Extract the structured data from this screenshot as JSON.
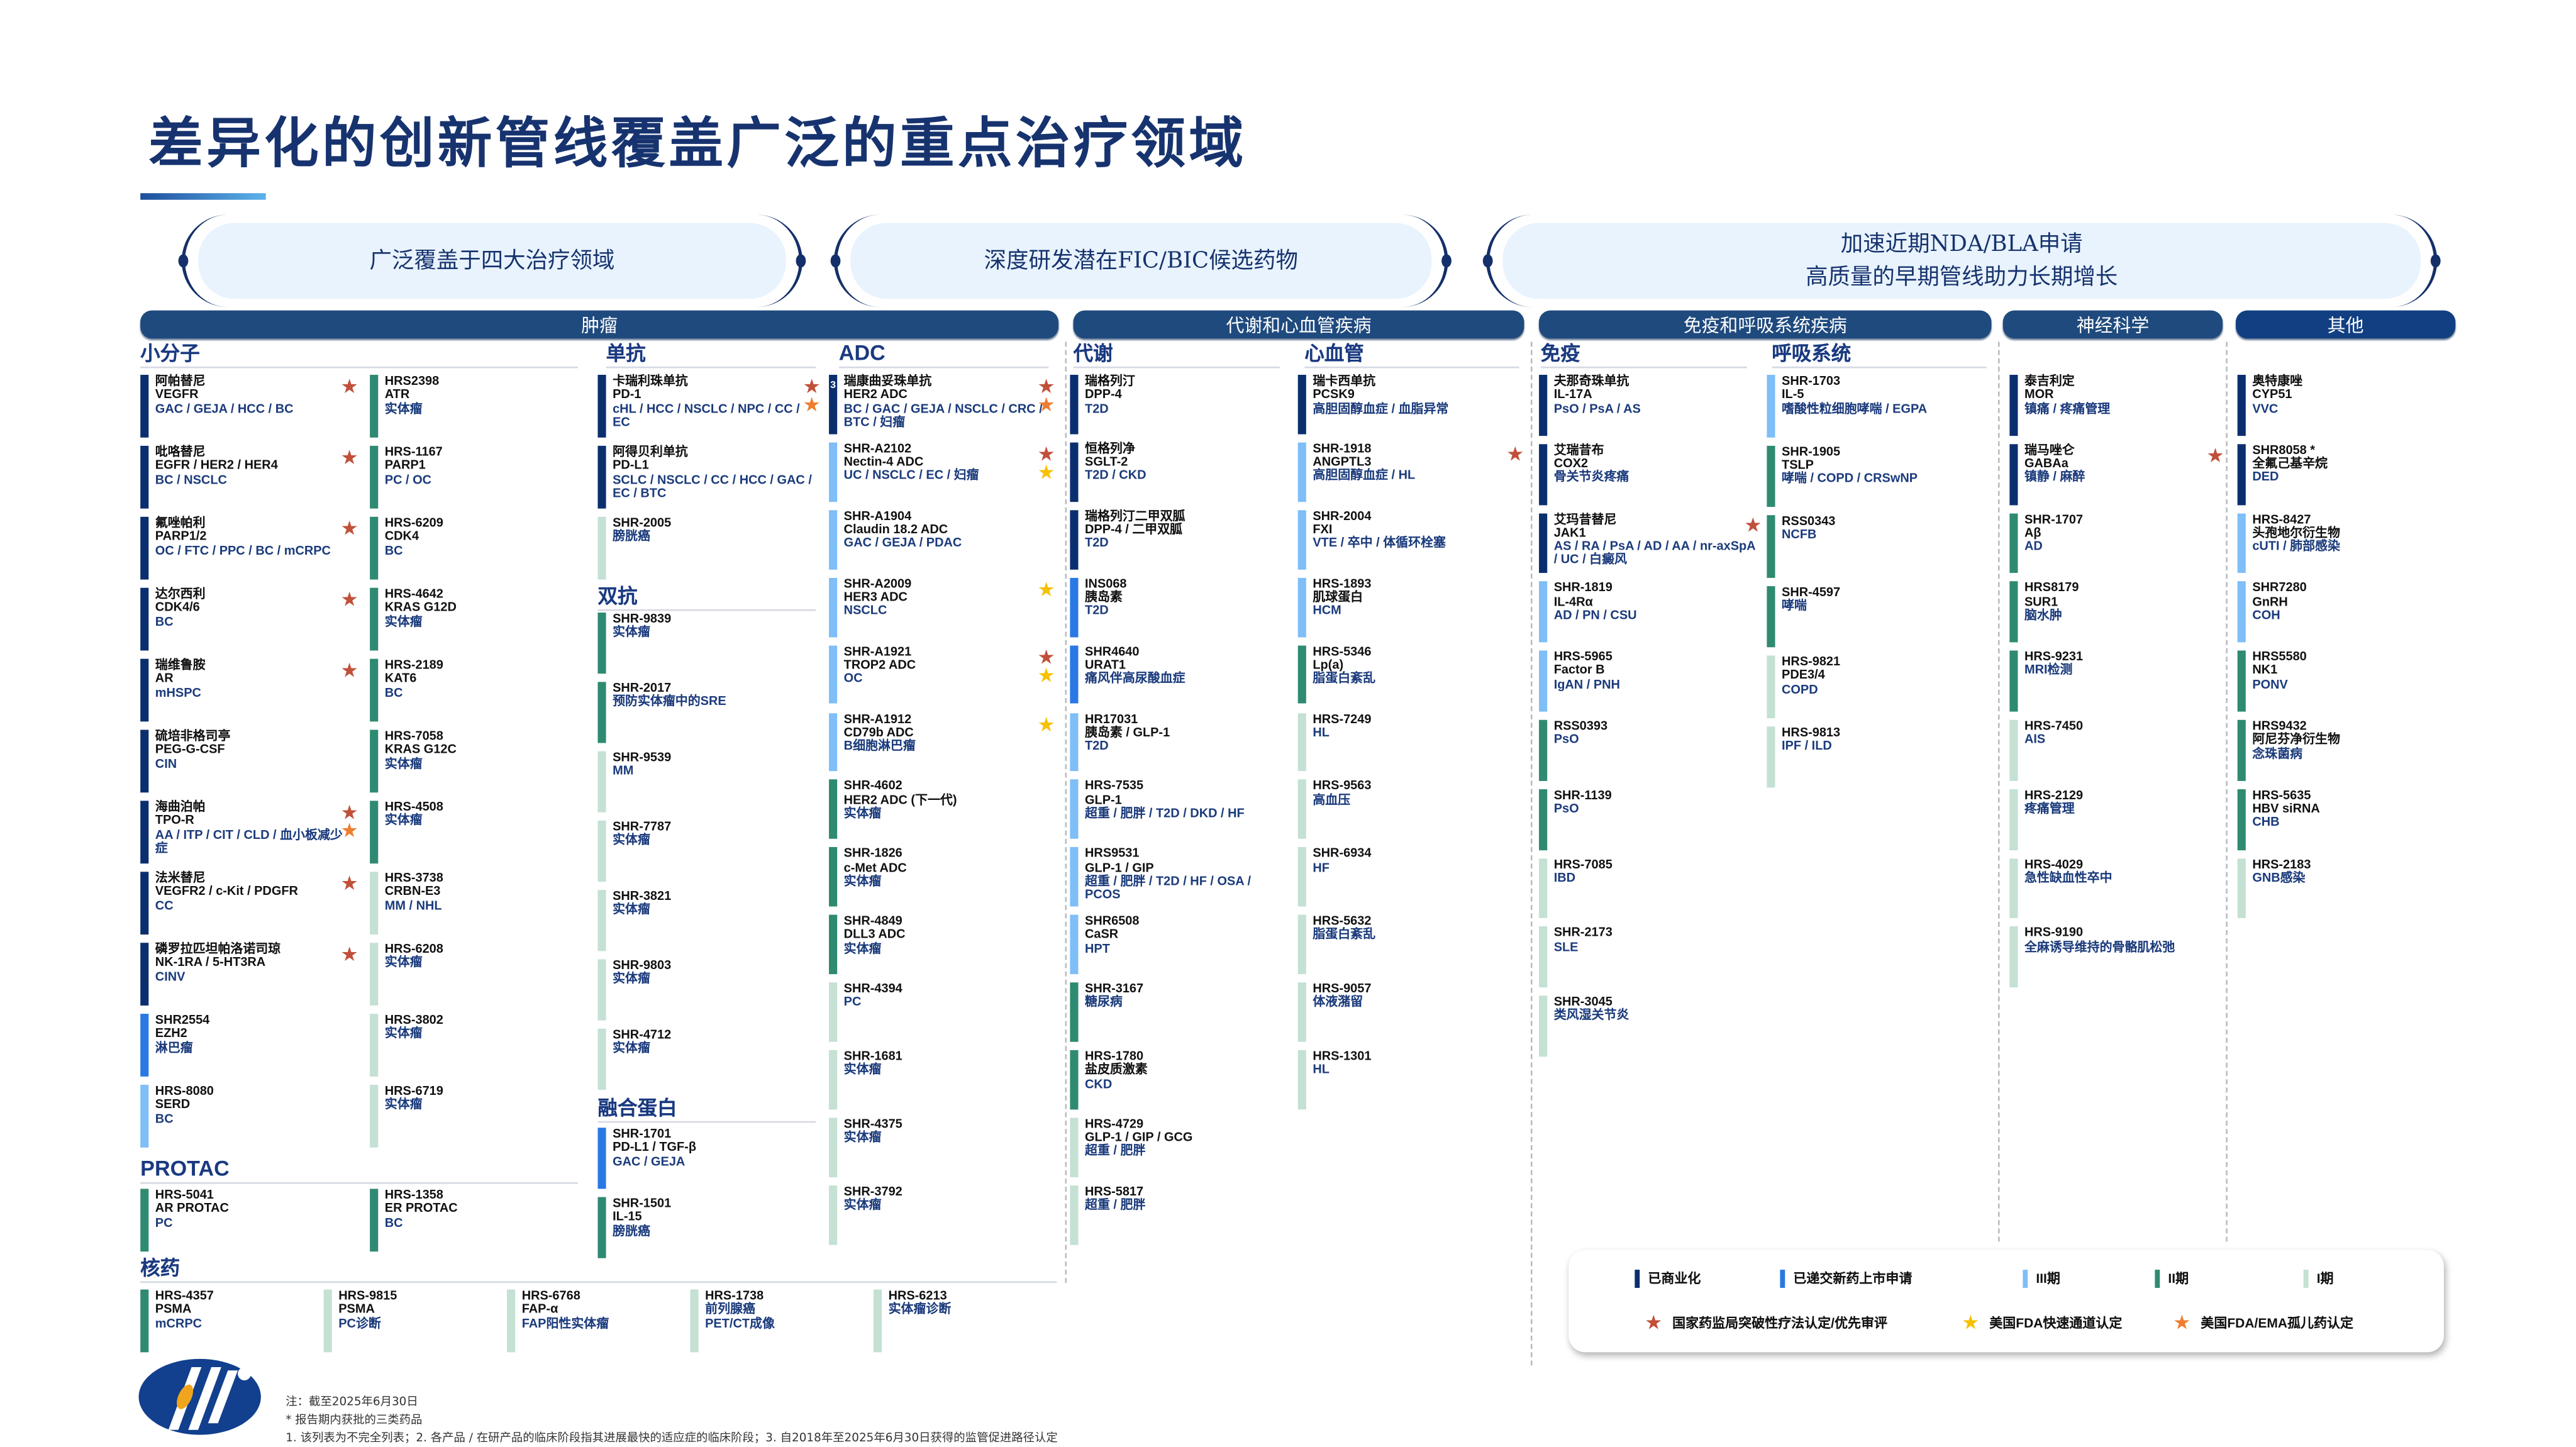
{
  "title": "差异化的创新管线覆盖广泛的重点治疗领域",
  "pills": [
    {
      "lines": [
        "广泛覆盖于四大治疗领域"
      ]
    },
    {
      "lines": [
        "深度研发潜在FIC/BIC候选药物"
      ]
    },
    {
      "lines": [
        "加速近期NDA/BLA申请",
        "高质量的早期管线助力长期增长"
      ]
    }
  ],
  "categories": [
    "肿瘤",
    "代谢和心血管疾病",
    "免疫和呼吸系统疾病",
    "神经科学",
    "其他"
  ],
  "headings": {
    "small_molecule": "小分子",
    "protac": "PROTAC",
    "radio": "核药",
    "mab": "单抗",
    "bsab": "双抗",
    "fusion": "融合蛋白",
    "adc": "ADC",
    "metabolic": "代谢",
    "cardio": "心血管",
    "immune": "免疫",
    "respiratory": "呼吸系统"
  },
  "stage_colors": {
    "c": "#0b2f6e",
    "n": "#2a78e4",
    "p3": "#7fbef7",
    "p2": "#2f8a72",
    "p1": "#c4e1d3"
  },
  "star_colors": {
    "red": "#c0503a",
    "yellow": "#f7c100",
    "orange": "#ee7d30"
  },
  "columns": {
    "small_left": {
      "cards": [
        {
          "name": "阿帕替尼",
          "target": "VEGFR",
          "ind": "GAC / GEJA / HCC / BC",
          "stage": "c",
          "stars": [
            "red"
          ]
        },
        {
          "name": "吡咯替尼",
          "target": "EGFR / HER2 / HER4",
          "ind": "BC / NSCLC",
          "stage": "c",
          "stars": [
            "red"
          ]
        },
        {
          "name": "氟唑帕利",
          "target": "PARP1/2",
          "ind": "OC / FTC / PPC / BC / mCRPC",
          "stage": "c",
          "stars": [
            "red"
          ]
        },
        {
          "name": "达尔西利",
          "target": "CDK4/6",
          "ind": "BC",
          "stage": "c",
          "stars": [
            "red"
          ]
        },
        {
          "name": "瑞维鲁胺",
          "target": "AR",
          "ind": "mHSPC",
          "stage": "c",
          "stars": [
            "red"
          ]
        },
        {
          "name": "硫培非格司亭",
          "target": "PEG-G-CSF",
          "ind": "CIN",
          "stage": "c",
          "stars": []
        },
        {
          "name": "海曲泊帕",
          "target": "TPO-R",
          "ind": "AA / ITP / CIT / CLD / 血小板减少症",
          "stage": "c",
          "stars": [
            "red",
            "orange"
          ]
        },
        {
          "name": "法米替尼",
          "target": "VEGFR2 / c-Kit / PDGFR",
          "ind": "CC",
          "stage": "c",
          "stars": [
            "red"
          ]
        },
        {
          "name": "磷罗拉匹坦帕洛诺司琼",
          "target": "NK-1RA / 5-HT3RA",
          "ind": "CINV",
          "stage": "c",
          "stars": [
            "red"
          ]
        },
        {
          "name": "SHR2554",
          "target": "EZH2",
          "ind": "淋巴瘤",
          "stage": "n",
          "stars": []
        },
        {
          "name": "HRS-8080",
          "target": "SERD",
          "ind": "BC",
          "stage": "p3",
          "stars": []
        }
      ]
    },
    "small_right": {
      "cards": [
        {
          "name": "HRS2398",
          "target": "ATR",
          "ind": "实体瘤",
          "stage": "p2",
          "stars": []
        },
        {
          "name": "HRS-1167",
          "target": "PARP1",
          "ind": "PC / OC",
          "stage": "p2",
          "stars": []
        },
        {
          "name": "HRS-6209",
          "target": "CDK4",
          "ind": "BC",
          "stage": "p2",
          "stars": []
        },
        {
          "name": "HRS-4642",
          "target": "KRAS G12D",
          "ind": "实体瘤",
          "stage": "p2",
          "stars": []
        },
        {
          "name": "HRS-2189",
          "target": "KAT6",
          "ind": "BC",
          "stage": "p2",
          "stars": []
        },
        {
          "name": "HRS-7058",
          "target": "KRAS G12C",
          "ind": "实体瘤",
          "stage": "p2",
          "stars": []
        },
        {
          "name": "HRS-4508",
          "ind": "实体瘤",
          "stage": "p2",
          "stars": []
        },
        {
          "name": "HRS-3738",
          "target": "CRBN-E3",
          "ind": "MM / NHL",
          "stage": "p1",
          "stars": []
        },
        {
          "name": "HRS-6208",
          "ind": "实体瘤",
          "stage": "p1",
          "stars": []
        },
        {
          "name": "HRS-3802",
          "ind": "实体瘤",
          "stage": "p1",
          "stars": []
        },
        {
          "name": "HRS-6719",
          "ind": "实体瘤",
          "stage": "p1",
          "stars": []
        }
      ]
    },
    "protac": {
      "cards": [
        {
          "name": "HRS-5041",
          "target": "AR PROTAC",
          "ind": "PC",
          "stage": "p2",
          "stars": []
        },
        {
          "name": "HRS-1358",
          "target": "ER PROTAC",
          "ind": "BC",
          "stage": "p2",
          "stars": []
        }
      ]
    },
    "radio": {
      "cards": [
        {
          "name": "HRS-4357",
          "target": "PSMA",
          "ind": "mCRPC",
          "stage": "p2",
          "stars": []
        },
        {
          "name": "HRS-9815",
          "target": "PSMA",
          "ind": "PC诊断",
          "stage": "p1",
          "stars": []
        },
        {
          "name": "HRS-6768",
          "target": "FAP-α",
          "ind": "FAP阳性实体瘤",
          "stage": "p1",
          "stars": []
        },
        {
          "name": "HRS-1738",
          "ind": "前列腺癌",
          "ind2": "PET/CT成像",
          "stage": "p1",
          "stars": []
        },
        {
          "name": "HRS-6213",
          "ind": "实体瘤诊断",
          "stage": "p1",
          "stars": []
        }
      ]
    },
    "mab": {
      "cards": [
        {
          "name": "卡瑞利珠单抗",
          "target": "PD-1",
          "ind": "cHL / HCC / NSCLC / NPC / CC / EC",
          "stage": "c",
          "stars": [
            "red",
            "orange"
          ]
        },
        {
          "name": "阿得贝利单抗",
          "target": "PD-L1",
          "ind": "SCLC / NSCLC / CC / HCC / GAC / EC / BTC",
          "stage": "c",
          "stars": []
        },
        {
          "name": "SHR-2005",
          "ind": "膀胱癌",
          "stage": "p1",
          "stars": []
        }
      ]
    },
    "bsab": {
      "cards": [
        {
          "name": "SHR-9839",
          "ind": "实体瘤",
          "stage": "p2",
          "stars": []
        },
        {
          "name": "SHR-2017",
          "ind": "预防实体瘤中的SRE",
          "stage": "p2",
          "stars": []
        },
        {
          "name": "SHR-9539",
          "ind": "MM",
          "stage": "p1",
          "stars": []
        },
        {
          "name": "SHR-7787",
          "ind": "实体瘤",
          "stage": "p1",
          "stars": []
        },
        {
          "name": "SHR-3821",
          "ind": "实体瘤",
          "stage": "p1",
          "stars": []
        },
        {
          "name": "SHR-9803",
          "ind": "实体瘤",
          "stage": "p1",
          "stars": []
        },
        {
          "name": "SHR-4712",
          "ind": "实体瘤",
          "stage": "p1",
          "stars": []
        }
      ]
    },
    "fusion": {
      "cards": [
        {
          "name": "SHR-1701",
          "target": "PD-L1 / TGF-β",
          "ind": "GAC / GEJA",
          "stage": "n",
          "stars": []
        },
        {
          "name": "SHR-1501",
          "target": "IL-15",
          "ind": "膀胱癌",
          "stage": "p2",
          "stars": []
        }
      ]
    },
    "adc": {
      "cards": [
        {
          "name": "瑞康曲妥珠单抗",
          "target": "HER2 ADC",
          "ind": "BC / GAC / GEJA / NSCLC / CRC / BTC / 妇瘤",
          "stage": "c",
          "stars": [
            "red",
            "orange"
          ],
          "marker": "3"
        },
        {
          "name": "SHR-A2102",
          "target": "Nectin-4 ADC",
          "ind": "UC / NSCLC / EC / 妇瘤",
          "stage": "p3",
          "stars": [
            "red",
            "yellow"
          ]
        },
        {
          "name": "SHR-A1904",
          "target": "Claudin 18.2 ADC",
          "ind": "GAC / GEJA / PDAC",
          "stage": "p3",
          "stars": []
        },
        {
          "name": "SHR-A2009",
          "target": "HER3 ADC",
          "ind": "NSCLC",
          "stage": "p3",
          "stars": [
            "yellow"
          ]
        },
        {
          "name": "SHR-A1921",
          "target": "TROP2 ADC",
          "ind": "OC",
          "stage": "p3",
          "stars": [
            "red",
            "yellow"
          ]
        },
        {
          "name": "SHR-A1912",
          "target": "CD79b ADC",
          "ind": "B细胞淋巴瘤",
          "stage": "p3",
          "stars": [
            "yellow"
          ]
        },
        {
          "name": "SHR-4602",
          "target": "HER2 ADC (下一代)",
          "ind": "实体瘤",
          "stage": "p2",
          "stars": []
        },
        {
          "name": "SHR-1826",
          "target": "c-Met ADC",
          "ind": "实体瘤",
          "stage": "p2",
          "stars": []
        },
        {
          "name": "SHR-4849",
          "target": "DLL3 ADC",
          "ind": "实体瘤",
          "stage": "p2",
          "stars": []
        },
        {
          "name": "SHR-4394",
          "ind": "PC",
          "stage": "p1",
          "stars": []
        },
        {
          "name": "SHR-1681",
          "ind": "实体瘤",
          "stage": "p1",
          "stars": []
        },
        {
          "name": "SHR-4375",
          "ind": "实体瘤",
          "stage": "p1",
          "stars": []
        },
        {
          "name": "SHR-3792",
          "ind": "实体瘤",
          "stage": "p1",
          "stars": []
        }
      ]
    },
    "metabolic": {
      "cards": [
        {
          "name": "瑞格列汀",
          "target": "DPP-4",
          "ind": "T2D",
          "stage": "c",
          "stars": []
        },
        {
          "name": "恒格列净",
          "target": "SGLT-2",
          "ind": "T2D / CKD",
          "stage": "c",
          "stars": []
        },
        {
          "name": "瑞格列汀二甲双胍",
          "target": "DPP-4 / 二甲双胍",
          "ind": "T2D",
          "stage": "c",
          "stars": []
        },
        {
          "name": "INS068",
          "target": "胰岛素",
          "ind": "T2D",
          "stage": "n",
          "stars": []
        },
        {
          "name": "SHR4640",
          "target": "URAT1",
          "ind": "痛风伴高尿酸血症",
          "stage": "n",
          "stars": []
        },
        {
          "name": "HR17031",
          "target": "胰岛素 / GLP-1",
          "ind": "T2D",
          "stage": "p3",
          "stars": []
        },
        {
          "name": "HRS-7535",
          "target": "GLP-1",
          "ind": "超重 / 肥胖 / T2D / DKD / HF",
          "stage": "p3",
          "stars": []
        },
        {
          "name": "HRS9531",
          "target": "GLP-1 / GIP",
          "ind": "超重 / 肥胖 / T2D / HF / OSA / PCOS",
          "stage": "p3",
          "stars": []
        },
        {
          "name": "SHR6508",
          "target": "CaSR",
          "ind": "HPT",
          "stage": "p3",
          "stars": []
        },
        {
          "name": "SHR-3167",
          "ind": "糖尿病",
          "stage": "p2",
          "stars": []
        },
        {
          "name": "HRS-1780",
          "target": "盐皮质激素",
          "ind": "CKD",
          "stage": "p2",
          "stars": []
        },
        {
          "name": "HRS-4729",
          "target": "GLP-1 / GIP / GCG",
          "ind": "超重 / 肥胖",
          "stage": "p1",
          "stars": []
        },
        {
          "name": "HRS-5817",
          "ind": "超重 / 肥胖",
          "stage": "p1",
          "stars": []
        }
      ]
    },
    "cardio": {
      "cards": [
        {
          "name": "瑞卡西单抗",
          "target": "PCSK9",
          "ind": "高胆固醇血症 / 血脂异常",
          "stage": "c",
          "stars": []
        },
        {
          "name": "SHR-1918",
          "target": "ANGPTL3",
          "ind": "高胆固醇血症 / HL",
          "stage": "p3",
          "stars": [
            "red"
          ]
        },
        {
          "name": "SHR-2004",
          "target": "FXI",
          "ind": "VTE / 卒中 / 体循环栓塞",
          "stage": "p3",
          "stars": []
        },
        {
          "name": "HRS-1893",
          "target": "肌球蛋白",
          "ind": "HCM",
          "stage": "p3",
          "stars": []
        },
        {
          "name": "HRS-5346",
          "target": "Lp(a)",
          "ind": "脂蛋白紊乱",
          "stage": "p2",
          "stars": []
        },
        {
          "name": "HRS-7249",
          "ind": "HL",
          "stage": "p1",
          "stars": []
        },
        {
          "name": "HRS-9563",
          "ind": "高血压",
          "stage": "p1",
          "stars": []
        },
        {
          "name": "SHR-6934",
          "ind": "HF",
          "stage": "p1",
          "stars": []
        },
        {
          "name": "HRS-5632",
          "ind": "脂蛋白紊乱",
          "stage": "p1",
          "stars": []
        },
        {
          "name": "HRS-9057",
          "ind": "体液潴留",
          "stage": "p1",
          "stars": []
        },
        {
          "name": "HRS-1301",
          "ind": "HL",
          "stage": "p1",
          "stars": []
        }
      ]
    },
    "immune": {
      "cards": [
        {
          "name": "夫那奇珠单抗",
          "target": "IL-17A",
          "ind": "PsO / PsA / AS",
          "stage": "c",
          "stars": []
        },
        {
          "name": "艾瑞昔布",
          "target": "COX2",
          "ind": "骨关节炎疼痛",
          "stage": "c",
          "stars": []
        },
        {
          "name": "艾玛昔替尼",
          "target": "JAK1",
          "ind": "AS / RA / PsA / AD / AA / nr-axSpA / UC / 白癜风",
          "stage": "c",
          "stars": [
            "red"
          ]
        },
        {
          "name": "SHR-1819",
          "target": "IL-4Rα",
          "ind": "AD / PN / CSU",
          "stage": "p3",
          "stars": []
        },
        {
          "name": "HRS-5965",
          "target": "Factor B",
          "ind": "IgAN / PNH",
          "stage": "p3",
          "stars": []
        },
        {
          "name": "RSS0393",
          "ind": "PsO",
          "stage": "p2",
          "stars": []
        },
        {
          "name": "SHR-1139",
          "ind": "PsO",
          "stage": "p2",
          "stars": []
        },
        {
          "name": "HRS-7085",
          "ind": "IBD",
          "stage": "p1",
          "stars": []
        },
        {
          "name": "SHR-2173",
          "ind": "SLE",
          "stage": "p1",
          "stars": []
        },
        {
          "name": "SHR-3045",
          "ind": "类风湿关节炎",
          "stage": "p1",
          "stars": []
        }
      ]
    },
    "respiratory": {
      "cards": [
        {
          "name": "SHR-1703",
          "target": "IL-5",
          "ind": "嗜酸性粒细胞哮喘 / EGPA",
          "stage": "p3",
          "stars": []
        },
        {
          "name": "SHR-1905",
          "target": "TSLP",
          "ind": "哮喘 / COPD / CRSwNP",
          "stage": "p2",
          "stars": []
        },
        {
          "name": "RSS0343",
          "ind": "NCFB",
          "stage": "p2",
          "stars": []
        },
        {
          "name": "SHR-4597",
          "ind": "哮喘",
          "stage": "p2",
          "stars": []
        },
        {
          "name": "HRS-9821",
          "target": "PDE3/4",
          "ind": "COPD",
          "stage": "p1",
          "stars": []
        },
        {
          "name": "HRS-9813",
          "ind": "IPF / ILD",
          "stage": "p1",
          "stars": []
        }
      ]
    },
    "neuro": {
      "cards": [
        {
          "name": "泰吉利定",
          "target": "MOR",
          "ind": "镇痛 / 疼痛管理",
          "stage": "c",
          "stars": []
        },
        {
          "name": "瑞马唑仑",
          "target": "GABAa",
          "ind": "镇静 / 麻醉",
          "stage": "c",
          "stars": [
            "red"
          ]
        },
        {
          "name": "SHR-1707",
          "target": "Aβ",
          "ind": "AD",
          "stage": "p2",
          "stars": []
        },
        {
          "name": "HRS8179",
          "target": "SUR1",
          "ind": "脑水肿",
          "stage": "p2",
          "stars": []
        },
        {
          "name": "HRS-9231",
          "ind": "MRI检测",
          "stage": "p2",
          "stars": []
        },
        {
          "name": "HRS-7450",
          "ind": "AIS",
          "stage": "p1",
          "stars": []
        },
        {
          "name": "HRS-2129",
          "ind": "疼痛管理",
          "stage": "p1",
          "stars": []
        },
        {
          "name": "HRS-4029",
          "ind": "急性缺血性卒中",
          "stage": "p1",
          "stars": []
        },
        {
          "name": "HRS-9190",
          "ind": "全麻诱导维持的骨骼肌松弛",
          "stage": "p1",
          "stars": []
        }
      ]
    },
    "other": {
      "cards": [
        {
          "name": "奥特康唑",
          "target": "CYP51",
          "ind": "VVC",
          "stage": "c",
          "stars": []
        },
        {
          "name": "SHR8058 *",
          "target": "全氟己基辛烷",
          "ind": "DED",
          "stage": "c",
          "stars": []
        },
        {
          "name": "HRS-8427",
          "target": "头孢地尔衍生物",
          "ind": "cUTI / 肺部感染",
          "stage": "p3",
          "stars": []
        },
        {
          "name": "SHR7280",
          "target": "GnRH",
          "ind": "COH",
          "stage": "p3",
          "stars": []
        },
        {
          "name": "HRS5580",
          "target": "NK1",
          "ind": "PONV",
          "stage": "p2",
          "stars": []
        },
        {
          "name": "HRS9432",
          "target": "阿尼芬净衍生物",
          "ind": "念珠菌病",
          "stage": "p2",
          "stars": []
        },
        {
          "name": "HRS-5635",
          "target": "HBV siRNA",
          "ind": "CHB",
          "stage": "p2",
          "stars": []
        },
        {
          "name": "HRS-2183",
          "ind": "GNB感染",
          "stage": "p1",
          "stars": []
        }
      ]
    }
  },
  "legend": {
    "stages": [
      {
        "key": "c",
        "label": "已商业化"
      },
      {
        "key": "n",
        "label": "已递交新药上市申请"
      },
      {
        "key": "p3",
        "label": "III期"
      },
      {
        "key": "p2",
        "label": "II期"
      },
      {
        "key": "p1",
        "label": "I期"
      }
    ],
    "stars": [
      {
        "key": "red",
        "label": "国家药监局突破性疗法认定/优先审评"
      },
      {
        "key": "yellow",
        "label": "美国FDA快速通道认定"
      },
      {
        "key": "orange",
        "label": "美国FDA/EMA孤儿药认定"
      }
    ]
  },
  "footnotes": [
    "注：截至2025年6月30日",
    "* 报告期内获批的三类药品",
    "1. 该列表为不完全列表；2. 各产品 / 在研产品的临床阶段指其进展最快的适应症的临床阶段；3. 自2018年至2025年6月30日获得的监管促进路径认定"
  ]
}
